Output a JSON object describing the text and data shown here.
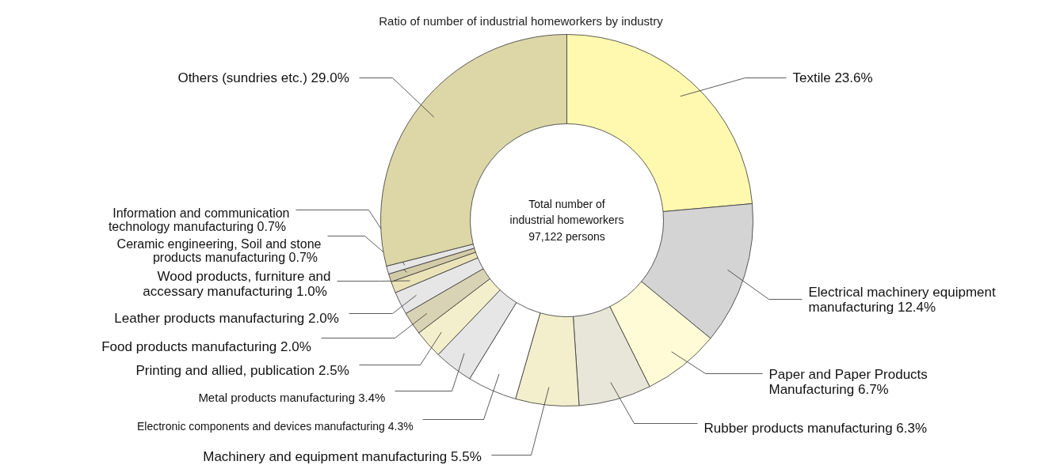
{
  "chart_data": {
    "type": "donut",
    "title": "Ratio of number of industrial homeworkers by industry",
    "categories": [
      "Textile",
      "Electrical machinery equipment manufacturing",
      "Paper and Paper Products Manufacturing",
      "Rubber products manufacturing",
      "Machinery and equipment manufacturing",
      "Electronic components and devices manufacturing",
      "Metal products manufacturing",
      "Printing and allied, publication",
      "Food products manufacturing",
      "Leather products manufacturing",
      "Wood products, furniture and accessary manufacturing",
      "Ceramic engineering, Soil and stone products manufacturing",
      "Information and communication technology manufacturing",
      "Others (sundries etc.)"
    ],
    "values": [
      23.6,
      12.4,
      6.7,
      6.3,
      5.5,
      4.3,
      3.4,
      2.5,
      2.0,
      2.0,
      1.0,
      0.7,
      0.7,
      29.0
    ],
    "value_labels": [
      "23.6%",
      "12.4%",
      "6.7%",
      "6.3%",
      "5.5%",
      "4.3%",
      "3.4%",
      "2.5%",
      "2.0%",
      "2.0%",
      "1.0%",
      "0.7%",
      "0.7%",
      "29.0%"
    ],
    "colors": [
      "#fff9b0",
      "#d4d4d4",
      "#fffbd6",
      "#e8e6d8",
      "#f3efcc",
      "#ffffff",
      "#e6e6e6",
      "#f3efcc",
      "#d9d3b5",
      "#e6e6e6",
      "#ebe3b8",
      "#d3cba8",
      "#e6e6e6",
      "#ddd7a8"
    ],
    "annotations": [
      "Total number of\nindustrial homeworkers\n97,122 persons"
    ]
  }
}
